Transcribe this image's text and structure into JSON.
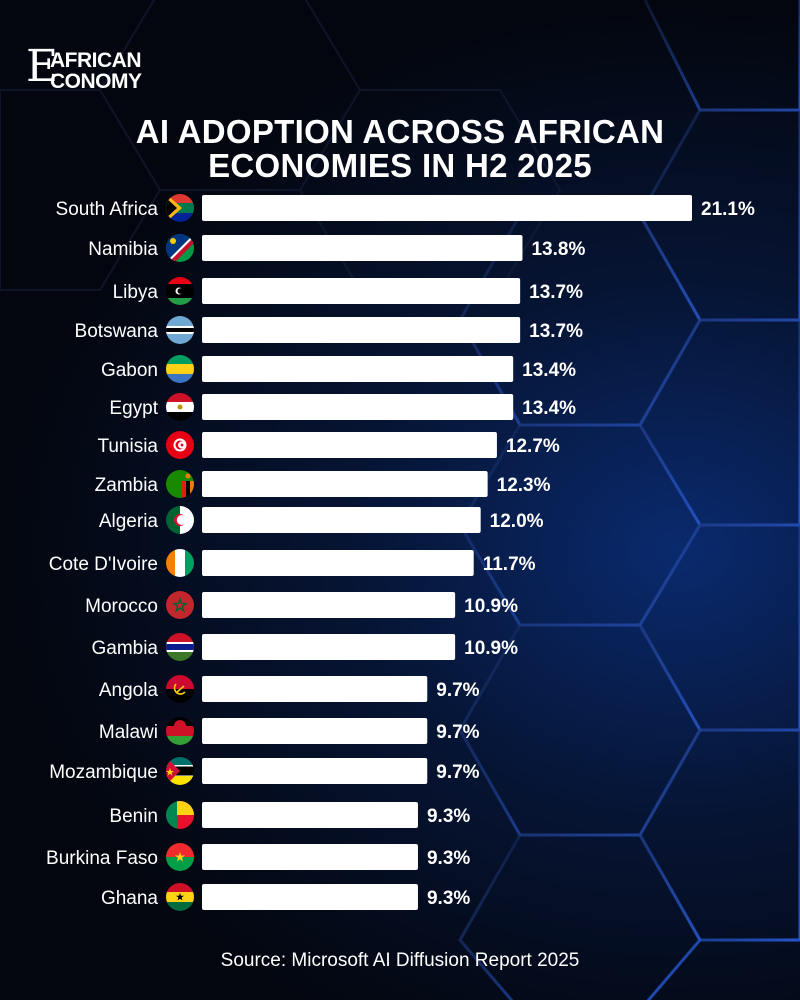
{
  "brand": {
    "logo_initial": "E",
    "logo_line1": "AFRICAN",
    "logo_line2": "CONOMY"
  },
  "title_line1": "AI ADOPTION ACROSS AFRICAN",
  "title_line2": "ECONOMIES IN H2 2025",
  "source": "Source: Microsoft AI Diffusion Report 2025",
  "colors": {
    "bar": "#ffffff",
    "text": "#ffffff",
    "background": "#04060c",
    "accent_glow": "#1f5cff"
  },
  "chart_data": {
    "type": "bar",
    "orientation": "horizontal",
    "title": "AI ADOPTION ACROSS AFRICAN ECONOMIES IN H2 2025",
    "xlabel": "",
    "ylabel": "",
    "unit": "%",
    "xlim": [
      0,
      21.1
    ],
    "categories": [
      "South Africa",
      "Namibia",
      "Libya",
      "Botswana",
      "Gabon",
      "Egypt",
      "Tunisia",
      "Zambia",
      "Algeria",
      "Cote D'Ivoire",
      "Morocco",
      "Gambia",
      "Angola",
      "Malawi",
      "Mozambique",
      "Benin",
      "Burkina Faso",
      "Ghana"
    ],
    "values": [
      21.1,
      13.8,
      13.7,
      13.7,
      13.4,
      13.4,
      12.7,
      12.3,
      12.0,
      11.7,
      10.9,
      10.9,
      9.7,
      9.7,
      9.7,
      9.3,
      9.3,
      9.3
    ],
    "labels": [
      "21.1%",
      "13.8%",
      "13.7%",
      "13.7%",
      "13.4%",
      "13.4%",
      "12.7%",
      "12.3%",
      "12.0%",
      "11.7%",
      "10.9%",
      "10.9%",
      "9.7%",
      "9.7%",
      "9.7%",
      "9.3%",
      "9.3%",
      "9.3%"
    ],
    "flag_icons": [
      "south-africa-flag-icon",
      "namibia-flag-icon",
      "libya-flag-icon",
      "botswana-flag-icon",
      "gabon-flag-icon",
      "egypt-flag-icon",
      "tunisia-flag-icon",
      "zambia-flag-icon",
      "algeria-flag-icon",
      "cote-divoire-flag-icon",
      "morocco-flag-icon",
      "gambia-flag-icon",
      "angola-flag-icon",
      "malawi-flag-icon",
      "mozambique-flag-icon",
      "benin-flag-icon",
      "burkina-faso-flag-icon",
      "ghana-flag-icon"
    ]
  }
}
